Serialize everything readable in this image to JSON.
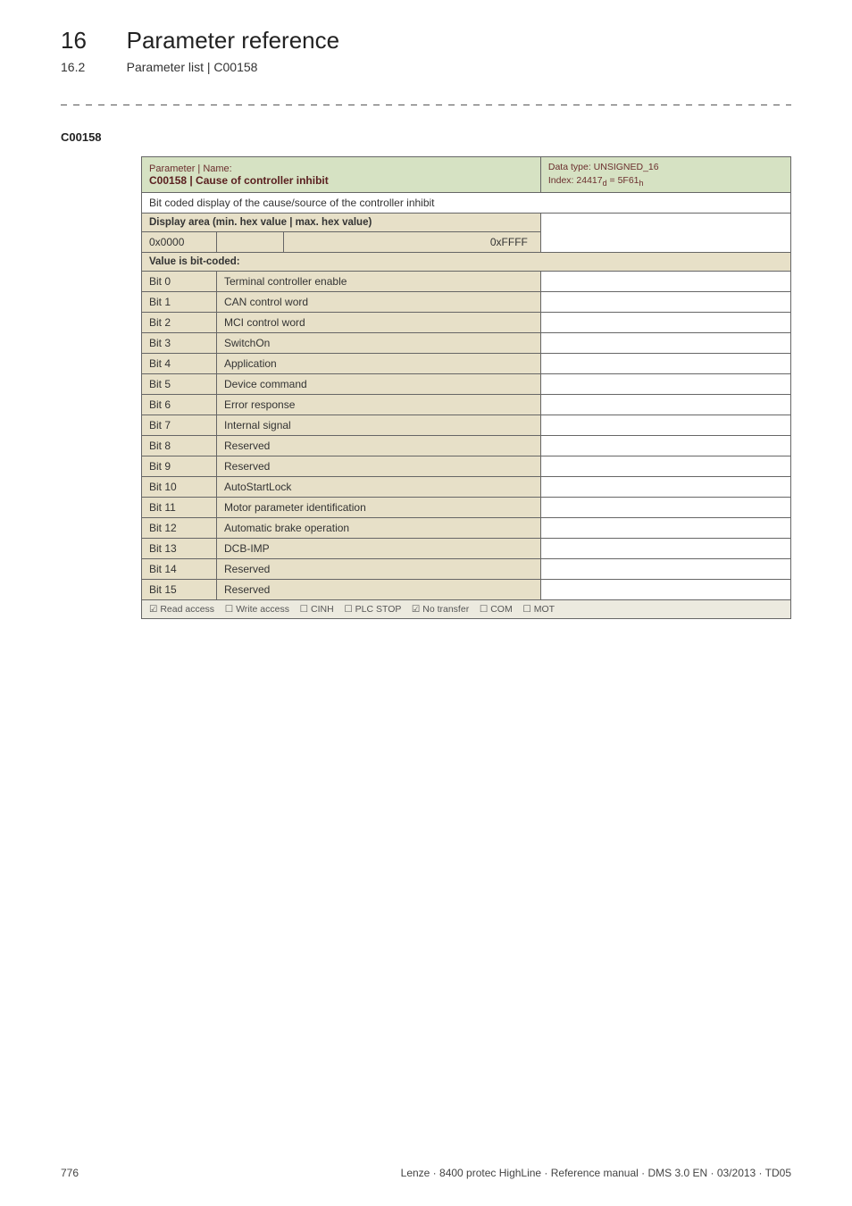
{
  "chapter": {
    "num": "16",
    "title": "Parameter reference"
  },
  "section": {
    "num": "16.2",
    "title": "Parameter list | C00158"
  },
  "param_code": "C00158",
  "header": {
    "label": "Parameter | Name:",
    "name": "C00158 | Cause of controller inhibit",
    "datatype": "Data type: UNSIGNED_16",
    "index_prefix": "Index: 24417",
    "index_sub1": "d",
    "index_mid": " = 5F61",
    "index_sub2": "h"
  },
  "desc": "Bit coded display of the cause/source of the controller inhibit",
  "display_area_label": "Display area (min. hex value | max. hex value)",
  "hex_min": "0x0000",
  "hex_max": "0xFFFF",
  "value_coded_label": "Value is bit-coded:",
  "bits": [
    {
      "label": "Bit 0",
      "val": "Terminal controller enable"
    },
    {
      "label": "Bit 1",
      "val": "CAN control word"
    },
    {
      "label": "Bit 2",
      "val": "MCI control word"
    },
    {
      "label": "Bit 3",
      "val": "SwitchOn"
    },
    {
      "label": "Bit 4",
      "val": "Application"
    },
    {
      "label": "Bit 5",
      "val": "Device command"
    },
    {
      "label": "Bit 6",
      "val": "Error response"
    },
    {
      "label": "Bit 7",
      "val": "Internal signal"
    },
    {
      "label": "Bit 8",
      "val": "Reserved"
    },
    {
      "label": "Bit 9",
      "val": "Reserved"
    },
    {
      "label": "Bit 10",
      "val": "AutoStartLock"
    },
    {
      "label": "Bit 11",
      "val": "Motor parameter identification"
    },
    {
      "label": "Bit 12",
      "val": "Automatic brake operation"
    },
    {
      "label": "Bit 13",
      "val": "DCB-IMP"
    },
    {
      "label": "Bit 14",
      "val": "Reserved"
    },
    {
      "label": "Bit 15",
      "val": "Reserved"
    }
  ],
  "access": {
    "read": {
      "box": "☑",
      "label": "Read access"
    },
    "write": {
      "box": "☐",
      "label": "Write access"
    },
    "cinh": {
      "box": "☐",
      "label": "CINH"
    },
    "plcstop": {
      "box": "☐",
      "label": "PLC STOP"
    },
    "notrans": {
      "box": "☑",
      "label": "No transfer"
    },
    "com": {
      "box": "☐",
      "label": "COM"
    },
    "mot": {
      "box": "☐",
      "label": "MOT"
    }
  },
  "footer": {
    "page": "776",
    "right": "Lenze · 8400 protec HighLine · Reference manual · DMS 3.0 EN · 03/2013 · TD05"
  }
}
